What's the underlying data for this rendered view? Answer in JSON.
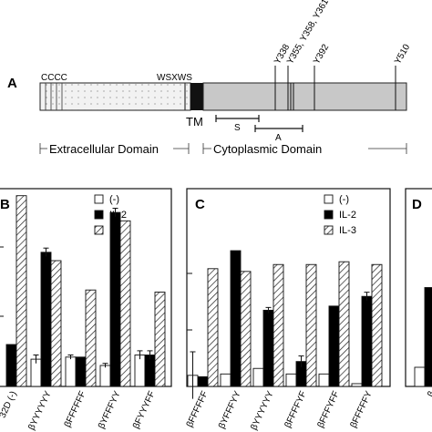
{
  "panel_a": {
    "letter": "A",
    "motif_left": "CCCC",
    "motif_right": "WSXWS",
    "tm_label": "TM",
    "sites": [
      "Y338",
      "Y355, Y358, Y361",
      "Y392",
      "Y510"
    ],
    "region_s": "S",
    "region_a": "A",
    "extracellular_label": "Extracellular Domain",
    "cytoplasmic_label": "Cytoplasmic Domain"
  },
  "legend": {
    "none": "(-)",
    "il2": "IL-2",
    "il3": "IL-3"
  },
  "colors": {
    "il2_fill": "#000000",
    "none_fill": "#ffffff",
    "extracellular_fill": "#f2f2f2",
    "cytoplasmic_fill": "#c8c8c8",
    "tm_fill": "#111111"
  },
  "chart_data": [
    {
      "panel": "B",
      "type": "bar",
      "categories": [
        "32D (-)",
        "βYYYYYY",
        "βFFFFFF",
        "βYFFFYY",
        "βFYYYFF"
      ],
      "series": [
        {
          "name": "(-)",
          "values": [
            null,
            0.13,
            0.14,
            0.1,
            0.15
          ]
        },
        {
          "name": "IL-2",
          "values": [
            0.2,
            0.64,
            0.14,
            0.83,
            0.15
          ]
        },
        {
          "name": "IL-3",
          "values": [
            0.91,
            0.6,
            0.46,
            0.79,
            0.45
          ]
        }
      ],
      "error_bars": {
        "(-)": [
          null,
          0.02,
          0.01,
          0.01,
          0.02
        ],
        "IL-2": [
          null,
          0.02,
          null,
          0.02,
          0.02
        ]
      }
    },
    {
      "panel": "C",
      "type": "bar",
      "categories": [
        "βFFFFFF",
        "βYFFFYY",
        "βYYYYYY",
        "βFFFFYF",
        "βFFFYFF",
        "βFFFFFY"
      ],
      "series": [
        {
          "name": "(-)",
          "values": [
            0.08,
            0.09,
            0.13,
            0.09,
            0.09,
            0.02
          ]
        },
        {
          "name": "IL-2",
          "values": [
            0.07,
            0.98,
            0.55,
            0.18,
            0.58,
            0.65
          ]
        },
        {
          "name": "IL-3",
          "values": [
            0.85,
            0.83,
            0.88,
            0.88,
            0.9,
            0.88
          ]
        }
      ],
      "error_bars": {
        "(-)": [
          0.17,
          null,
          null,
          null,
          null,
          null
        ],
        "IL-2": [
          null,
          null,
          0.02,
          0.04,
          null,
          0.03
        ]
      }
    },
    {
      "panel": "D",
      "type": "bar",
      "categories": [
        "β"
      ],
      "series": [
        {
          "name": "(-)",
          "values": [
            0.12
          ]
        },
        {
          "name": "IL-2",
          "values": [
            0.62
          ]
        }
      ]
    }
  ]
}
